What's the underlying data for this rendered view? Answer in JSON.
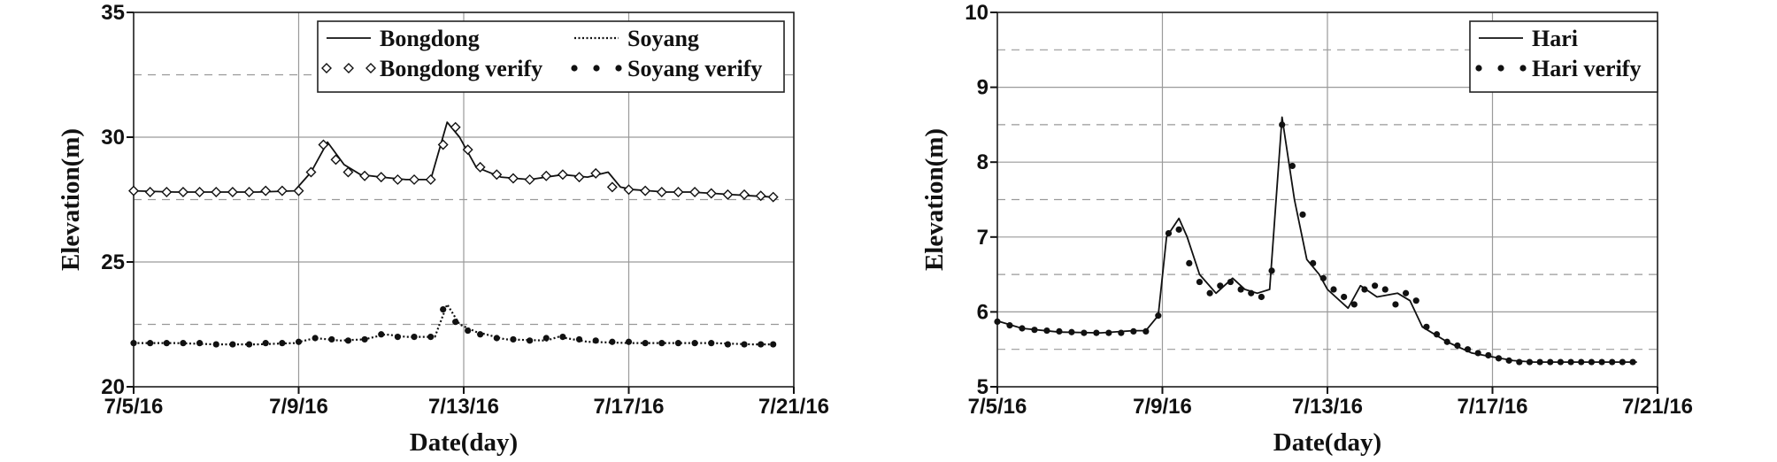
{
  "chart_data": [
    {
      "type": "line",
      "xlabel": "Date(day)",
      "ylabel": "Elevation(m)",
      "x_tick_labels": [
        "7/5/16",
        "7/9/16",
        "7/13/16",
        "7/17/16",
        "7/21/16"
      ],
      "xlim": [
        0,
        16
      ],
      "ylim": [
        20,
        35
      ],
      "y_ticks": [
        20,
        25,
        30,
        35
      ],
      "grid": "solid major gridlines, dashed minor horizontal lines",
      "legend_position": "top-right",
      "series": [
        {
          "name": "Bongdong",
          "style": "solid",
          "x": [
            0,
            1,
            2,
            3,
            3.9,
            4.3,
            4.7,
            5.1,
            5.5,
            6,
            6.6,
            7.2,
            7.6,
            7.9,
            8.3,
            8.9,
            9.6,
            10.4,
            11,
            11.5,
            11.8,
            12.1,
            12.5,
            12.9,
            13.5,
            14,
            14.5,
            15,
            15.5
          ],
          "values": [
            27.85,
            27.8,
            27.8,
            27.8,
            27.85,
            28.6,
            29.8,
            28.9,
            28.5,
            28.4,
            28.3,
            28.3,
            30.6,
            30.0,
            28.8,
            28.4,
            28.3,
            28.5,
            28.4,
            28.6,
            28.0,
            27.9,
            27.85,
            27.8,
            27.8,
            27.75,
            27.7,
            27.65,
            27.6
          ]
        },
        {
          "name": "Bongdong verify",
          "style": "open-diamond markers",
          "x": [
            0,
            0.4,
            0.8,
            1.2,
            1.6,
            2,
            2.4,
            2.8,
            3.2,
            3.6,
            4,
            4.3,
            4.6,
            4.9,
            5.2,
            5.6,
            6,
            6.4,
            6.8,
            7.2,
            7.5,
            7.8,
            8.1,
            8.4,
            8.8,
            9.2,
            9.6,
            10,
            10.4,
            10.8,
            11.2,
            11.6,
            12,
            12.4,
            12.8,
            13.2,
            13.6,
            14,
            14.4,
            14.8,
            15.2,
            15.5
          ],
          "values": [
            27.85,
            27.8,
            27.8,
            27.8,
            27.8,
            27.8,
            27.8,
            27.8,
            27.85,
            27.85,
            27.85,
            28.6,
            29.7,
            29.1,
            28.6,
            28.45,
            28.4,
            28.3,
            28.3,
            28.3,
            29.7,
            30.4,
            29.5,
            28.8,
            28.5,
            28.35,
            28.3,
            28.45,
            28.5,
            28.4,
            28.55,
            28.0,
            27.9,
            27.85,
            27.8,
            27.8,
            27.8,
            27.75,
            27.7,
            27.7,
            27.65,
            27.6
          ]
        },
        {
          "name": "Soyang",
          "style": "dotted",
          "x": [
            0,
            1,
            2,
            3,
            3.9,
            4.4,
            5,
            5.6,
            6.1,
            6.6,
            7.3,
            7.6,
            7.9,
            8.3,
            9,
            10,
            10.3,
            11,
            12,
            13,
            14,
            15,
            15.5
          ],
          "values": [
            21.75,
            21.75,
            21.7,
            21.7,
            21.75,
            21.95,
            21.85,
            21.9,
            22.1,
            22.0,
            22.0,
            23.3,
            22.5,
            22.2,
            21.9,
            21.85,
            22.0,
            21.8,
            21.75,
            21.75,
            21.75,
            21.7,
            21.7
          ]
        },
        {
          "name": "Soyang verify",
          "style": "filled-circle markers",
          "x": [
            0,
            0.4,
            0.8,
            1.2,
            1.6,
            2,
            2.4,
            2.8,
            3.2,
            3.6,
            4,
            4.4,
            4.8,
            5.2,
            5.6,
            6,
            6.4,
            6.8,
            7.2,
            7.5,
            7.8,
            8.1,
            8.4,
            8.8,
            9.2,
            9.6,
            10,
            10.4,
            10.8,
            11.2,
            11.6,
            12,
            12.4,
            12.8,
            13.2,
            13.6,
            14,
            14.4,
            14.8,
            15.2,
            15.5
          ],
          "values": [
            21.75,
            21.75,
            21.75,
            21.75,
            21.75,
            21.7,
            21.7,
            21.7,
            21.75,
            21.75,
            21.8,
            21.95,
            21.9,
            21.85,
            21.9,
            22.1,
            22.0,
            22.0,
            22.0,
            23.1,
            22.6,
            22.25,
            22.1,
            21.95,
            21.9,
            21.85,
            21.95,
            22.0,
            21.9,
            21.85,
            21.8,
            21.8,
            21.75,
            21.75,
            21.75,
            21.75,
            21.75,
            21.7,
            21.7,
            21.7,
            21.7
          ]
        }
      ]
    },
    {
      "type": "line",
      "xlabel": "Date(day)",
      "ylabel": "Elevation(m)",
      "x_tick_labels": [
        "7/5/16",
        "7/9/16",
        "7/13/16",
        "7/17/16",
        "7/21/16"
      ],
      "xlim": [
        0,
        16
      ],
      "ylim": [
        5,
        10
      ],
      "y_ticks": [
        5,
        6,
        7,
        8,
        9,
        10
      ],
      "grid": "solid major gridlines, dashed minor horizontal lines",
      "legend_position": "top-right",
      "series": [
        {
          "name": "Hari",
          "style": "solid",
          "x": [
            0,
            0.6,
            1.5,
            2.5,
            3.3,
            3.6,
            3.9,
            4.1,
            4.4,
            4.6,
            4.9,
            5.3,
            5.7,
            6.0,
            6.3,
            6.6,
            6.9,
            7.2,
            7.5,
            7.8,
            8.0,
            8.2,
            8.5,
            8.8,
            9.2,
            9.7,
            10.0,
            10.3,
            10.6,
            10.9,
            11.1,
            11.5,
            12.0,
            12.5,
            13,
            13.5,
            14,
            14.5,
            15,
            15.5
          ],
          "values": [
            5.88,
            5.78,
            5.73,
            5.72,
            5.75,
            5.75,
            5.95,
            7.0,
            7.25,
            7.0,
            6.5,
            6.25,
            6.45,
            6.3,
            6.25,
            6.3,
            8.6,
            7.5,
            6.7,
            6.5,
            6.3,
            6.2,
            6.05,
            6.35,
            6.2,
            6.25,
            6.15,
            5.8,
            5.7,
            5.6,
            5.55,
            5.45,
            5.4,
            5.35,
            5.33,
            5.33,
            5.33,
            5.33,
            5.33,
            5.33
          ]
        },
        {
          "name": "Hari verify",
          "style": "filled-circle markers",
          "x": [
            0,
            0.3,
            0.6,
            0.9,
            1.2,
            1.5,
            1.8,
            2.1,
            2.4,
            2.7,
            3.0,
            3.3,
            3.6,
            3.9,
            4.15,
            4.4,
            4.65,
            4.9,
            5.15,
            5.4,
            5.65,
            5.9,
            6.15,
            6.4,
            6.65,
            6.9,
            7.15,
            7.4,
            7.65,
            7.9,
            8.15,
            8.4,
            8.65,
            8.9,
            9.15,
            9.4,
            9.65,
            9.9,
            10.15,
            10.4,
            10.65,
            10.9,
            11.15,
            11.4,
            11.65,
            11.9,
            12.15,
            12.4,
            12.65,
            12.9,
            13.15,
            13.4,
            13.65,
            13.9,
            14.15,
            14.4,
            14.65,
            14.9,
            15.15,
            15.4
          ],
          "values": [
            5.87,
            5.82,
            5.78,
            5.76,
            5.75,
            5.74,
            5.73,
            5.72,
            5.72,
            5.72,
            5.72,
            5.74,
            5.74,
            5.95,
            7.05,
            7.1,
            6.65,
            6.4,
            6.25,
            6.35,
            6.4,
            6.3,
            6.25,
            6.2,
            6.55,
            8.5,
            7.95,
            7.3,
            6.65,
            6.45,
            6.3,
            6.2,
            6.1,
            6.3,
            6.35,
            6.3,
            6.1,
            6.25,
            6.15,
            5.8,
            5.7,
            5.6,
            5.55,
            5.5,
            5.45,
            5.42,
            5.38,
            5.35,
            5.33,
            5.33,
            5.33,
            5.33,
            5.33,
            5.33,
            5.33,
            5.33,
            5.33,
            5.33,
            5.33,
            5.33
          ]
        }
      ]
    }
  ]
}
